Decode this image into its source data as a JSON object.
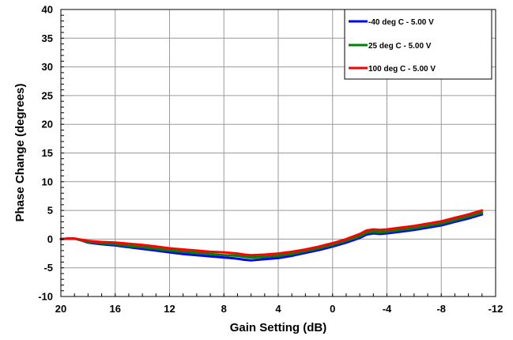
{
  "chart_data": {
    "type": "line",
    "title": "",
    "xlabel": "Gain Setting (dB)",
    "ylabel": "Phase Change (degrees)",
    "xlim": [
      20,
      -12
    ],
    "ylim": [
      -10,
      40
    ],
    "x_ticks": [
      "20",
      "16",
      "12",
      "8",
      "4",
      "0",
      "-4",
      "-8",
      "-12"
    ],
    "y_ticks": [
      "40",
      "35",
      "30",
      "25",
      "20",
      "15",
      "10",
      "5",
      "0",
      "-5",
      "-10"
    ],
    "grid": true,
    "legend_position": "top-right",
    "series": [
      {
        "name": "-40 deg C - 5.00 V",
        "color": "#0000FF",
        "x": [
          20,
          19.5,
          19,
          18.5,
          18,
          17,
          16,
          15,
          14,
          13,
          12,
          11,
          10,
          9,
          8,
          7,
          6.5,
          6,
          5,
          4,
          3,
          2,
          1,
          0,
          -1,
          -2,
          -2.5,
          -3,
          -3.5,
          -4,
          -5,
          -6,
          -7,
          -8,
          -9,
          -10,
          -11
        ],
        "y": [
          0.0,
          0.1,
          0.1,
          -0.2,
          -0.6,
          -0.9,
          -1.1,
          -1.4,
          -1.7,
          -2.0,
          -2.3,
          -2.6,
          -2.8,
          -3.0,
          -3.2,
          -3.4,
          -3.6,
          -3.7,
          -3.5,
          -3.3,
          -2.9,
          -2.4,
          -1.9,
          -1.3,
          -0.6,
          0.2,
          0.8,
          1.0,
          0.9,
          1.0,
          1.3,
          1.6,
          2.0,
          2.4,
          3.0,
          3.6,
          4.3
        ]
      },
      {
        "name": "25 deg C - 5.00 V",
        "color": "#008000",
        "x": [
          20,
          19.5,
          19,
          18.5,
          18,
          17,
          16,
          15,
          14,
          13,
          12,
          11,
          10,
          9,
          8,
          7,
          6.5,
          6,
          5,
          4,
          3,
          2,
          1,
          0,
          -1,
          -2,
          -2.5,
          -3,
          -3.5,
          -4,
          -5,
          -6,
          -7,
          -8,
          -9,
          -10,
          -11
        ],
        "y": [
          0.0,
          0.1,
          0.1,
          -0.2,
          -0.5,
          -0.7,
          -0.9,
          -1.2,
          -1.4,
          -1.7,
          -2.0,
          -2.2,
          -2.4,
          -2.6,
          -2.8,
          -2.9,
          -3.1,
          -3.2,
          -3.1,
          -2.9,
          -2.6,
          -2.1,
          -1.6,
          -1.0,
          -0.3,
          0.5,
          1.1,
          1.3,
          1.2,
          1.3,
          1.6,
          1.9,
          2.3,
          2.7,
          3.3,
          3.9,
          4.6
        ]
      },
      {
        "name": "100 deg C - 5.00 V",
        "color": "#FF0000",
        "x": [
          20,
          19.5,
          19,
          18.5,
          18,
          17,
          16,
          15,
          14,
          13,
          12,
          11,
          10,
          9,
          8,
          7,
          6.5,
          6,
          5,
          4,
          3,
          2,
          1,
          0,
          -1,
          -2,
          -2.5,
          -3,
          -3.5,
          -4,
          -5,
          -6,
          -7,
          -8,
          -9,
          -10,
          -11
        ],
        "y": [
          0.0,
          0.1,
          0.1,
          -0.1,
          -0.3,
          -0.5,
          -0.6,
          -0.8,
          -1.0,
          -1.3,
          -1.6,
          -1.8,
          -2.0,
          -2.2,
          -2.3,
          -2.5,
          -2.7,
          -2.8,
          -2.7,
          -2.5,
          -2.2,
          -1.8,
          -1.3,
          -0.7,
          0.0,
          0.9,
          1.5,
          1.7,
          1.6,
          1.7,
          2.0,
          2.3,
          2.7,
          3.1,
          3.7,
          4.3,
          5.0
        ]
      }
    ]
  }
}
